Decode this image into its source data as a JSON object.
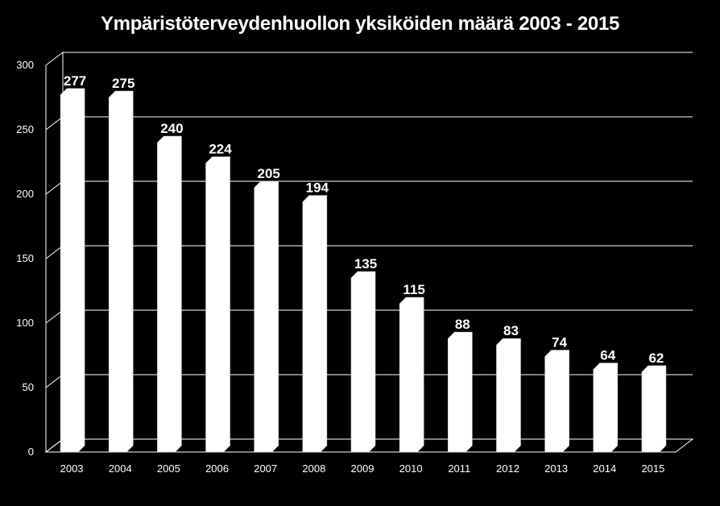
{
  "chart_data": {
    "type": "bar",
    "title": "Ympäristöterveydenhuollon yksiköiden määrä 2003 - 2015",
    "categories": [
      "2003",
      "2004",
      "2005",
      "2006",
      "2007",
      "2008",
      "2009",
      "2010",
      "2011",
      "2012",
      "2013",
      "2014",
      "2015"
    ],
    "values": [
      277,
      275,
      240,
      224,
      205,
      194,
      135,
      115,
      88,
      83,
      74,
      64,
      62
    ],
    "xlabel": "",
    "ylabel": "",
    "ylim": [
      0,
      300
    ],
    "yticks": [
      0,
      50,
      100,
      150,
      200,
      250,
      300
    ],
    "grid": true,
    "data_labels": true,
    "background_color": "#000000",
    "bar_color": "#ffffff",
    "grid_color": "#ffffff",
    "text_color": "#ffffff"
  }
}
